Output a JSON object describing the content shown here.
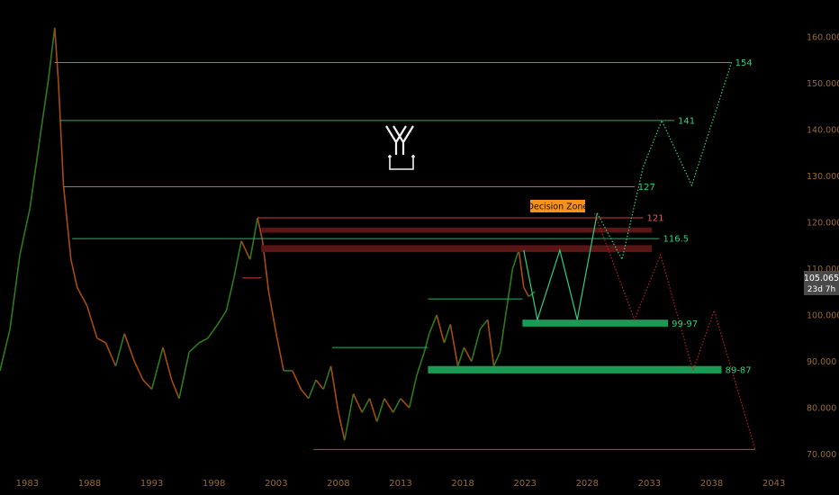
{
  "chart_data": {
    "type": "line",
    "title": "",
    "xlabel": "",
    "ylabel": "",
    "xlim": [
      1980.8,
      2045.2
    ],
    "ylim": [
      67,
      168
    ],
    "x_ticks": [
      "1983",
      "1988",
      "1993",
      "1998",
      "2003",
      "2008",
      "2013",
      "2018",
      "2023",
      "2028",
      "2033",
      "2038",
      "2043"
    ],
    "y_ticks": [
      "160.000",
      "150.000",
      "140.000",
      "130.000",
      "120.000",
      "110.000",
      "100.000",
      "90.000",
      "80.000",
      "70.000"
    ],
    "y_tick_values": [
      160,
      150,
      140,
      130,
      120,
      110,
      100,
      90,
      80,
      70
    ],
    "colors": {
      "background": "#000000",
      "price": "#2d7a1c",
      "price_down": "#a64b10",
      "green_level": "#22b26b",
      "red_level": "#d63c3c",
      "projection_up": "#2fd07e",
      "projection_down": "#b81f1f",
      "decision_zone_bg": "#f7931a"
    },
    "current_price": {
      "value": 105.065,
      "label": "105.065",
      "sublabel": "23d 7h"
    },
    "decision_zone": {
      "label": "Decision Zone"
    },
    "levels": [
      {
        "label": "154",
        "y": 154.5,
        "x_start": 1985.2,
        "x_end": 2039.6,
        "color": "green"
      },
      {
        "label": "141",
        "y": 142,
        "x_start": 1985.6,
        "x_end": 2035.0,
        "color": "green"
      },
      {
        "label": "127",
        "y": 127.7,
        "x_start": 1985.9,
        "x_end": 2031.8,
        "color": "green"
      },
      {
        "label": "121",
        "y": 121,
        "x_start": 2001.5,
        "x_end": 2032.5,
        "color": "red"
      },
      {
        "label": "116.5",
        "y": 116.5,
        "x_start": 1986.6,
        "x_end": 2033.8,
        "color": "green"
      },
      {
        "label": "99-97",
        "y": 98.2,
        "x_start": 2022.8,
        "x_end": 2034.5,
        "color": "green"
      },
      {
        "label": "89-87",
        "y": 88.2,
        "x_start": 2015.2,
        "x_end": 2038.8,
        "color": "green"
      }
    ],
    "unlabeled_lines": [
      {
        "y": 71,
        "x_start": 2006.0,
        "x_end": 2041.5,
        "color": "red"
      },
      {
        "y": 108,
        "x_start": 2000.3,
        "x_end": 2001.8,
        "color": "red"
      },
      {
        "y": 93,
        "x_start": 2007.5,
        "x_end": 2015.2,
        "color": "green"
      },
      {
        "y": 103.5,
        "x_start": 2015.2,
        "x_end": 2022.8,
        "color": "green"
      }
    ],
    "zones": [
      {
        "y_top": 118.9,
        "y_bottom": 117.8,
        "x_start": 2001.8,
        "x_end": 2033.2,
        "color": "red"
      },
      {
        "y_top": 115.1,
        "y_bottom": 113.6,
        "x_start": 2001.8,
        "x_end": 2033.2,
        "color": "red"
      },
      {
        "y_top": 99.0,
        "y_bottom": 97.5,
        "x_start": 2022.8,
        "x_end": 2034.5,
        "color": "green"
      },
      {
        "y_top": 89.0,
        "y_bottom": 87.4,
        "x_start": 2015.2,
        "x_end": 2038.8,
        "color": "green"
      }
    ],
    "projections": [
      {
        "style": "solid",
        "color": "green",
        "points": [
          [
            2022.9,
            114
          ],
          [
            2024.0,
            99
          ],
          [
            2025.8,
            114
          ],
          [
            2027.2,
            99
          ],
          [
            2028.8,
            122
          ]
        ]
      },
      {
        "style": "dotted",
        "color": "green",
        "points": [
          [
            2028.8,
            122
          ],
          [
            2030.8,
            112
          ],
          [
            2032.5,
            132
          ],
          [
            2034.0,
            142
          ],
          [
            2036.4,
            128
          ],
          [
            2039.6,
            154.5
          ]
        ]
      },
      {
        "style": "dotted",
        "color": "red",
        "points": [
          [
            2028.6,
            122
          ],
          [
            2031.8,
            99
          ],
          [
            2033.9,
            113
          ],
          [
            2036.5,
            88
          ],
          [
            2038.2,
            101
          ],
          [
            2041.5,
            71
          ]
        ]
      }
    ],
    "price_series": {
      "name": "",
      "x": [
        1980.8,
        1981.6,
        1982.4,
        1983.2,
        1984.0,
        1984.7,
        1985.2,
        1985.5,
        1985.9,
        1986.5,
        1987.0,
        1987.8,
        1988.6,
        1989.3,
        1990.1,
        1990.8,
        1991.6,
        1992.3,
        1993.0,
        1993.9,
        1994.6,
        1995.2,
        1996.0,
        1996.8,
        1997.5,
        1998.3,
        1999.0,
        1999.6,
        2000.2,
        2000.9,
        2001.5,
        2001.9,
        2002.4,
        2003.0,
        2003.6,
        2004.3,
        2005.0,
        2005.6,
        2006.2,
        2006.8,
        2007.4,
        2008.0,
        2008.5,
        2009.2,
        2009.9,
        2010.5,
        2011.1,
        2011.7,
        2012.4,
        2013.0,
        2013.7,
        2014.3,
        2014.9,
        2015.3,
        2015.9,
        2016.5,
        2017.0,
        2017.6,
        2018.1,
        2018.7,
        2019.4,
        2020.0,
        2020.5,
        2021.0,
        2021.5,
        2022.0,
        2022.5,
        2022.9,
        2023.3,
        2023.8
      ],
      "values": [
        88,
        97,
        113,
        123,
        138,
        151,
        162,
        150,
        128,
        112,
        106,
        102,
        95,
        94,
        89,
        96,
        90,
        86,
        84,
        93,
        86,
        82,
        92,
        94,
        95,
        98,
        101,
        108,
        116,
        112,
        121,
        116,
        105,
        96,
        88,
        88,
        84,
        82,
        86,
        84,
        89,
        79,
        73,
        83,
        79,
        82,
        77,
        82,
        79,
        82,
        80,
        87,
        92,
        96,
        100,
        94,
        98,
        89,
        93,
        90,
        97,
        99,
        89,
        92,
        101,
        110,
        114,
        106,
        104,
        105.065
      ]
    }
  }
}
